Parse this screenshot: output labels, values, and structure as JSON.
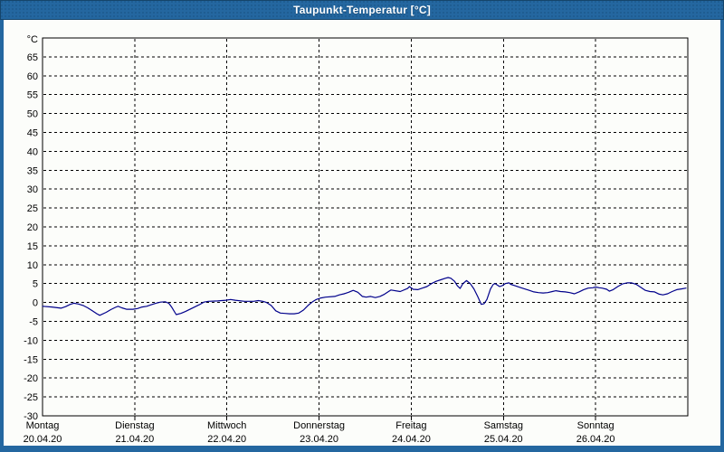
{
  "window": {
    "title": "Taupunkt-Temperatur [°C]"
  },
  "colors": {
    "titlebar": "#2467a0",
    "frame": "#2467a0",
    "frame_outline": "#15456b",
    "content_background": "#fcfdfa",
    "grid": "#000000",
    "plot_border": "#000000",
    "line": "#00008b",
    "title_text": "#ffffff",
    "axis_text": "#000000"
  },
  "chart_data": {
    "type": "line",
    "title": "Taupunkt-Temperatur [°C]",
    "ylabel": "°C",
    "ylim": [
      -30,
      70
    ],
    "ytick_step": 5,
    "ytick_label_min": -30,
    "ytick_label_max": 65,
    "grid": "dashed",
    "legend": "none",
    "xlim_days": [
      0,
      7
    ],
    "x_days": [
      {
        "name": "Montag",
        "date": "20.04.20"
      },
      {
        "name": "Dienstag",
        "date": "21.04.20"
      },
      {
        "name": "Mittwoch",
        "date": "22.04.20"
      },
      {
        "name": "Donnerstag",
        "date": "23.04.20"
      },
      {
        "name": "Freitag",
        "date": "24.04.20"
      },
      {
        "name": "Samstag",
        "date": "25.04.20"
      },
      {
        "name": "Sonntag",
        "date": "26.04.20"
      }
    ],
    "series": [
      {
        "name": "Taupunkt-Temperatur",
        "color": "#00008b",
        "points": [
          [
            0.0,
            -1.0
          ],
          [
            0.1,
            -1.2
          ],
          [
            0.2,
            -1.5
          ],
          [
            0.25,
            -1.1
          ],
          [
            0.3,
            -0.5
          ],
          [
            0.34,
            -0.2
          ],
          [
            0.39,
            -0.4
          ],
          [
            0.44,
            -0.8
          ],
          [
            0.49,
            -1.4
          ],
          [
            0.54,
            -2.2
          ],
          [
            0.59,
            -3.0
          ],
          [
            0.62,
            -3.4
          ],
          [
            0.69,
            -2.6
          ],
          [
            0.74,
            -1.9
          ],
          [
            0.79,
            -1.3
          ],
          [
            0.82,
            -1.0
          ],
          [
            0.86,
            -1.4
          ],
          [
            0.91,
            -1.8
          ],
          [
            0.98,
            -1.8
          ],
          [
            1.03,
            -1.6
          ],
          [
            1.08,
            -1.2
          ],
          [
            1.13,
            -1.0
          ],
          [
            1.18,
            -0.6
          ],
          [
            1.23,
            -0.2
          ],
          [
            1.28,
            0.1
          ],
          [
            1.33,
            0.2
          ],
          [
            1.37,
            -0.2
          ],
          [
            1.4,
            -1.2
          ],
          [
            1.45,
            -3.2
          ],
          [
            1.5,
            -2.9
          ],
          [
            1.55,
            -2.4
          ],
          [
            1.6,
            -1.8
          ],
          [
            1.65,
            -1.2
          ],
          [
            1.7,
            -0.6
          ],
          [
            1.75,
            0.1
          ],
          [
            1.8,
            0.3
          ],
          [
            1.9,
            0.4
          ],
          [
            1.99,
            0.6
          ],
          [
            2.04,
            0.8
          ],
          [
            2.09,
            0.6
          ],
          [
            2.19,
            0.3
          ],
          [
            2.29,
            0.3
          ],
          [
            2.34,
            0.5
          ],
          [
            2.39,
            0.3
          ],
          [
            2.43,
            0.0
          ],
          [
            2.48,
            -0.8
          ],
          [
            2.53,
            -2.2
          ],
          [
            2.58,
            -2.8
          ],
          [
            2.63,
            -2.9
          ],
          [
            2.68,
            -3.0
          ],
          [
            2.73,
            -3.0
          ],
          [
            2.78,
            -2.8
          ],
          [
            2.83,
            -2.0
          ],
          [
            2.88,
            -0.8
          ],
          [
            2.93,
            0.2
          ],
          [
            2.97,
            0.8
          ],
          [
            3.02,
            1.2
          ],
          [
            3.07,
            1.4
          ],
          [
            3.17,
            1.6
          ],
          [
            3.22,
            2.0
          ],
          [
            3.27,
            2.3
          ],
          [
            3.32,
            2.7
          ],
          [
            3.37,
            3.2
          ],
          [
            3.42,
            2.7
          ],
          [
            3.47,
            1.6
          ],
          [
            3.51,
            1.4
          ],
          [
            3.56,
            1.6
          ],
          [
            3.61,
            1.3
          ],
          [
            3.66,
            1.6
          ],
          [
            3.71,
            2.2
          ],
          [
            3.78,
            3.3
          ],
          [
            3.88,
            2.9
          ],
          [
            3.96,
            3.7
          ],
          [
            3.98,
            4.2
          ],
          [
            4.02,
            3.5
          ],
          [
            4.07,
            3.4
          ],
          [
            4.12,
            3.8
          ],
          [
            4.17,
            4.2
          ],
          [
            4.22,
            5.0
          ],
          [
            4.27,
            5.6
          ],
          [
            4.32,
            6.0
          ],
          [
            4.37,
            6.4
          ],
          [
            4.4,
            6.6
          ],
          [
            4.43,
            6.4
          ],
          [
            4.47,
            5.6
          ],
          [
            4.5,
            4.4
          ],
          [
            4.53,
            3.7
          ],
          [
            4.56,
            5.0
          ],
          [
            4.6,
            5.8
          ],
          [
            4.64,
            5.0
          ],
          [
            4.68,
            3.6
          ],
          [
            4.72,
            1.6
          ],
          [
            4.76,
            -0.5
          ],
          [
            4.79,
            -0.3
          ],
          [
            4.82,
            0.8
          ],
          [
            4.86,
            3.6
          ],
          [
            4.89,
            4.8
          ],
          [
            4.91,
            5.0
          ],
          [
            4.94,
            4.5
          ],
          [
            4.96,
            4.2
          ],
          [
            4.99,
            4.5
          ],
          [
            5.02,
            5.0
          ],
          [
            5.06,
            5.2
          ],
          [
            5.08,
            4.8
          ],
          [
            5.13,
            4.4
          ],
          [
            5.18,
            4.0
          ],
          [
            5.23,
            3.6
          ],
          [
            5.28,
            3.2
          ],
          [
            5.33,
            2.8
          ],
          [
            5.38,
            2.6
          ],
          [
            5.43,
            2.5
          ],
          [
            5.48,
            2.6
          ],
          [
            5.53,
            2.9
          ],
          [
            5.57,
            3.1
          ],
          [
            5.62,
            2.9
          ],
          [
            5.67,
            2.8
          ],
          [
            5.72,
            2.6
          ],
          [
            5.77,
            2.3
          ],
          [
            5.82,
            2.8
          ],
          [
            5.87,
            3.4
          ],
          [
            5.92,
            3.8
          ],
          [
            5.97,
            3.9
          ],
          [
            6.0,
            4.1
          ],
          [
            6.04,
            3.9
          ],
          [
            6.07,
            3.8
          ],
          [
            6.12,
            3.5
          ],
          [
            6.15,
            3.0
          ],
          [
            6.19,
            3.4
          ],
          [
            6.24,
            4.2
          ],
          [
            6.29,
            4.9
          ],
          [
            6.34,
            5.2
          ],
          [
            6.39,
            5.2
          ],
          [
            6.44,
            4.8
          ],
          [
            6.49,
            4.0
          ],
          [
            6.54,
            3.2
          ],
          [
            6.59,
            2.9
          ],
          [
            6.64,
            2.8
          ],
          [
            6.69,
            2.2
          ],
          [
            6.73,
            2.0
          ],
          [
            6.78,
            2.3
          ],
          [
            6.83,
            2.9
          ],
          [
            6.88,
            3.4
          ],
          [
            6.93,
            3.6
          ],
          [
            6.98,
            3.8
          ]
        ]
      }
    ]
  }
}
